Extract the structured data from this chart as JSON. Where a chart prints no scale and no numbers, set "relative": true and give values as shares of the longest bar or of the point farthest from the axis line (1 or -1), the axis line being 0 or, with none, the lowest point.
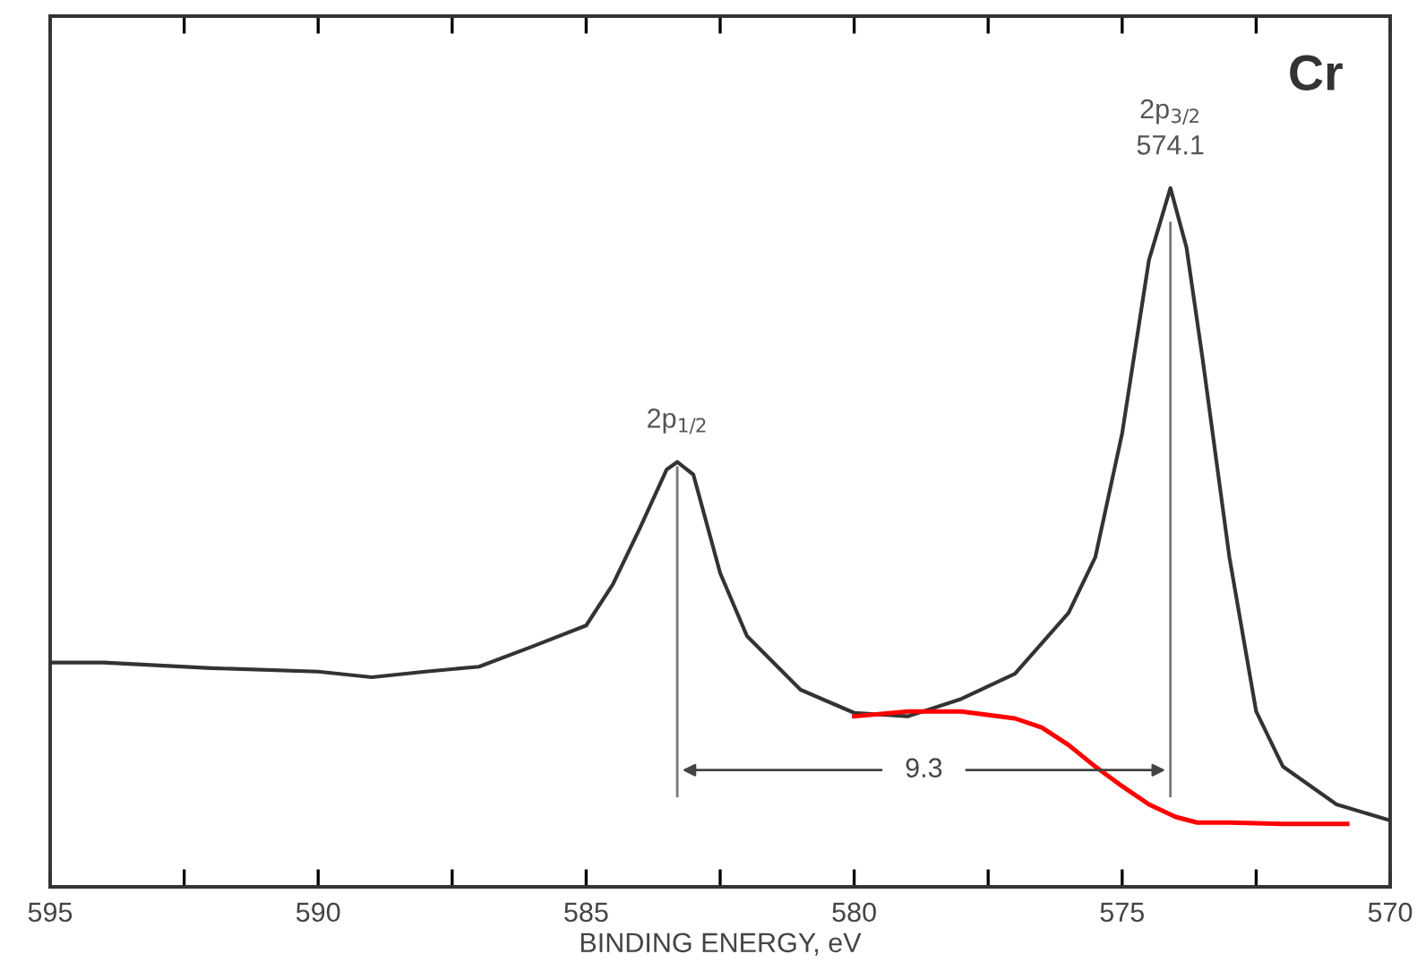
{
  "chart_data": {
    "type": "line",
    "relative": true,
    "xlabel": "BINDING ENERGY, eV",
    "xlim": [
      595,
      570
    ],
    "xticks": [
      595,
      {
        "value": 592.5,
        "label": null
      },
      590,
      {
        "value": 587.5,
        "label": null
      },
      585,
      {
        "value": 582.5,
        "label": null
      },
      580,
      {
        "value": 577.5,
        "label": null
      },
      575,
      {
        "value": 572.5,
        "label": null
      },
      570
    ],
    "grid": false,
    "legend": false,
    "marker": "none",
    "line_style": "solid",
    "tick_labels": "x",
    "series": [
      {
        "color": "#333333",
        "x": [
          595,
          594,
          592,
          590,
          589,
          588,
          587,
          586,
          585,
          584.5,
          584,
          583.5,
          583.3,
          583,
          582.5,
          582,
          581,
          580,
          579,
          578,
          577,
          576,
          575.5,
          575,
          574.5,
          574.1,
          573.8,
          573.5,
          573,
          572.5,
          572,
          571,
          570
        ],
        "values": [
          0.321,
          0.321,
          0.313,
          0.308,
          0.3,
          0.308,
          0.315,
          0.344,
          0.374,
          0.433,
          0.513,
          0.597,
          0.608,
          0.59,
          0.449,
          0.359,
          0.282,
          0.249,
          0.244,
          0.269,
          0.305,
          0.392,
          0.472,
          0.649,
          0.897,
          1.0,
          0.915,
          0.756,
          0.472,
          0.251,
          0.172,
          0.118,
          0.095
        ]
      },
      {
        "color": "#ff0000",
        "x": [
          580,
          579,
          578,
          577,
          576.5,
          576,
          575.5,
          575,
          574.5,
          574,
          573.6,
          573,
          572,
          571,
          570.8
        ],
        "values": [
          0.244,
          0.251,
          0.251,
          0.241,
          0.228,
          0.203,
          0.172,
          0.144,
          0.118,
          0.1,
          0.092,
          0.092,
          0.09,
          0.09,
          0.09
        ]
      }
    ],
    "ref_lines": [
      {
        "axis": "x",
        "value": 583.3,
        "color": "#777777"
      },
      {
        "axis": "x",
        "value": 574.1,
        "color": "#777777"
      }
    ],
    "annotations": [
      {
        "text": "2p$_{1/2}$",
        "x": 583.3,
        "y": 0.608
      },
      {
        "text": "2p$_{3/2}$\n574.1",
        "x": 574.1,
        "y": 1.0
      },
      {
        "text": "9.3",
        "x": 578.7,
        "y": 0.167
      },
      "Cr"
    ]
  }
}
